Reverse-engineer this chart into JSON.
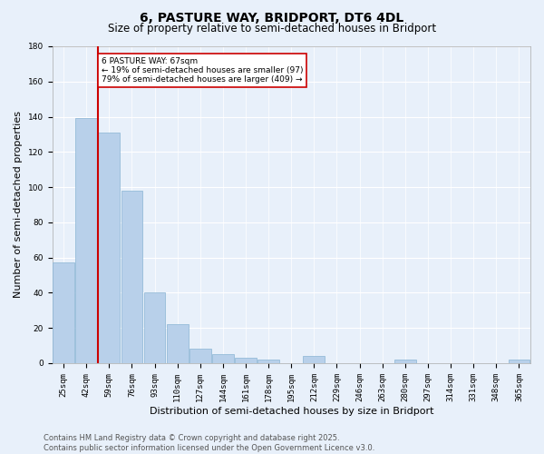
{
  "title": "6, PASTURE WAY, BRIDPORT, DT6 4DL",
  "subtitle": "Size of property relative to semi-detached houses in Bridport",
  "xlabel": "Distribution of semi-detached houses by size in Bridport",
  "ylabel": "Number of semi-detached properties",
  "categories": [
    "25sqm",
    "42sqm",
    "59sqm",
    "76sqm",
    "93sqm",
    "110sqm",
    "127sqm",
    "144sqm",
    "161sqm",
    "178sqm",
    "195sqm",
    "212sqm",
    "229sqm",
    "246sqm",
    "263sqm",
    "280sqm",
    "297sqm",
    "314sqm",
    "331sqm",
    "348sqm",
    "365sqm"
  ],
  "values": [
    57,
    139,
    131,
    98,
    40,
    22,
    8,
    5,
    3,
    2,
    0,
    4,
    0,
    0,
    0,
    2,
    0,
    0,
    0,
    0,
    2
  ],
  "bar_color": "#b8d0ea",
  "bar_edge_color": "#8ab4d4",
  "vline_x_index": 2,
  "vline_color": "#cc0000",
  "box_text_line1": "6 PASTURE WAY: 67sqm",
  "box_text_line2": "← 19% of semi-detached houses are smaller (97)",
  "box_text_line3": "79% of semi-detached houses are larger (409) →",
  "box_color": "#cc0000",
  "box_fill": "white",
  "ylim": [
    0,
    180
  ],
  "yticks": [
    0,
    20,
    40,
    60,
    80,
    100,
    120,
    140,
    160,
    180
  ],
  "footnote_line1": "Contains HM Land Registry data © Crown copyright and database right 2025.",
  "footnote_line2": "Contains public sector information licensed under the Open Government Licence v3.0.",
  "background_color": "#e8f0fa",
  "plot_background": "#e8f0fa",
  "grid_color": "white",
  "title_fontsize": 10,
  "subtitle_fontsize": 8.5,
  "axis_label_fontsize": 8,
  "tick_fontsize": 6.5,
  "footnote_fontsize": 6
}
